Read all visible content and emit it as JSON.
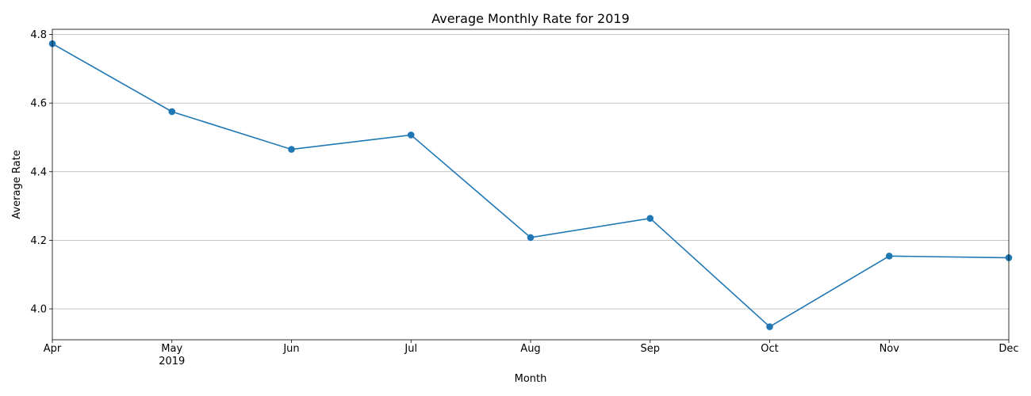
{
  "chart_data": {
    "type": "line",
    "title": "Average Monthly Rate for 2019",
    "xlabel": "Month",
    "ylabel": "Average Rate",
    "categories": [
      "Apr",
      "May",
      "Jun",
      "Jul",
      "Aug",
      "Sep",
      "Oct",
      "Nov",
      "Dec"
    ],
    "year_label": "2019",
    "year_label_under": "May",
    "series": [
      {
        "values": [
          4.773,
          4.575,
          4.465,
          4.507,
          4.208,
          4.264,
          3.948,
          4.154,
          4.149
        ],
        "color": "#1f77b4",
        "marker": "circle"
      }
    ],
    "ylim": [
      3.91,
      4.815
    ],
    "yticks": [
      4.0,
      4.2,
      4.4,
      4.6,
      4.8
    ],
    "ytick_labels": [
      "4.0",
      "4.2",
      "4.4",
      "4.6",
      "4.8"
    ],
    "grid": "y-major"
  }
}
